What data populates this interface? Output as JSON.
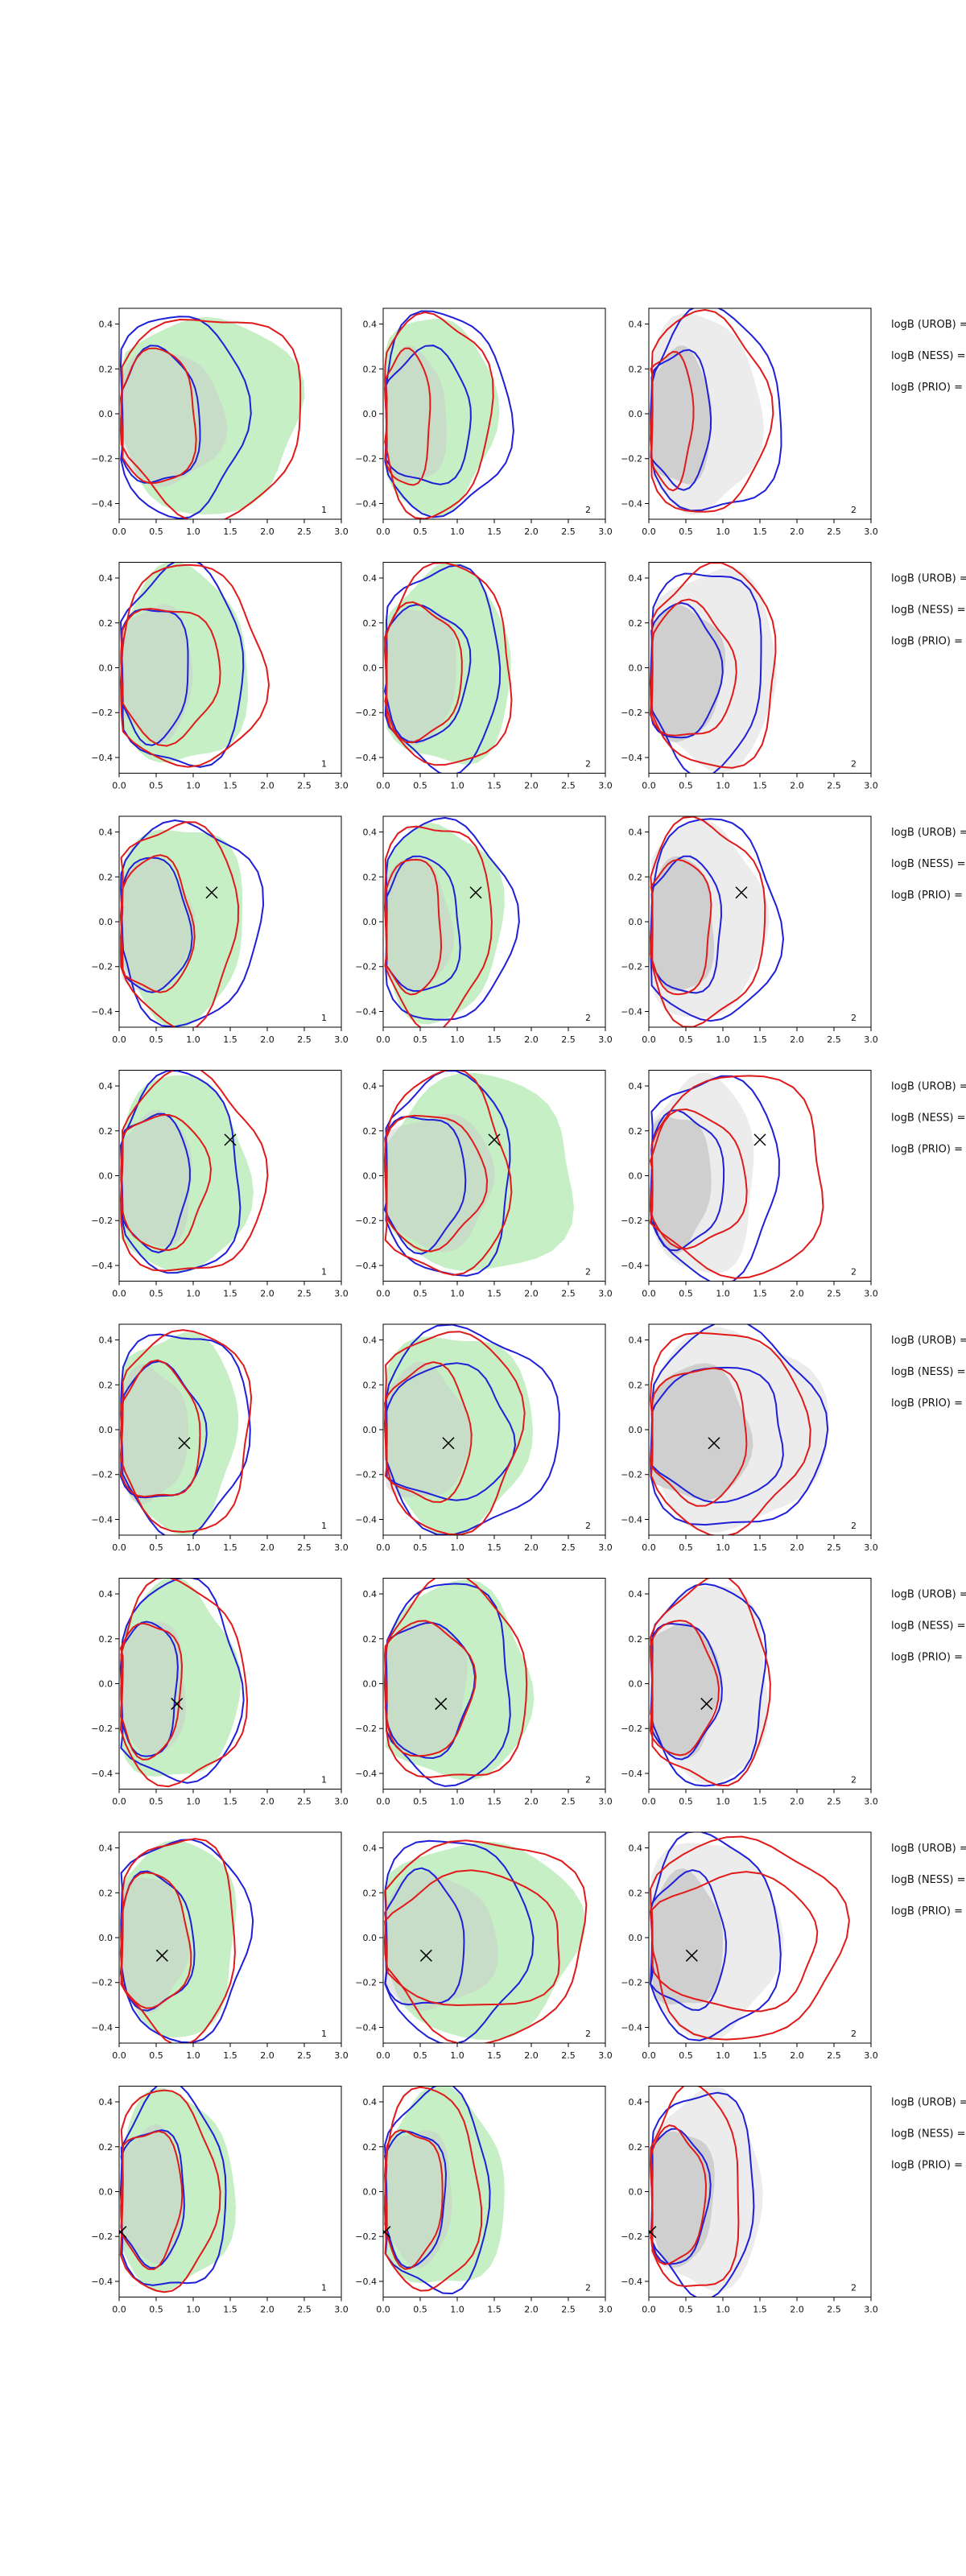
{
  "figure": {
    "side_labels": [
      "logB (UROB) =",
      "logB (NESS) =",
      "logB (PRIO) ="
    ],
    "x_ticks": [
      "0.0",
      "0.5",
      "1.0",
      "1.5",
      "2.0",
      "2.5",
      "3.0"
    ],
    "y_ticks": [
      "0.4",
      "0.2",
      "0.0",
      "−0.2",
      "−0.4"
    ],
    "colors": {
      "fill_green": "#c6efc6",
      "fill_gray": "#ececec",
      "inner_gray": "#c8c8c8",
      "contour_blue": "#1f1fd8",
      "contour_red": "#e01a1a",
      "marker": "#000000"
    }
  },
  "chart_data": [
    {
      "type": "contour",
      "row": 1,
      "marker": null,
      "panels": [
        {
          "corner_label": "1",
          "fill": "green",
          "fill_r": 2.45,
          "blue": [
            1.7,
            1.1
          ],
          "red": [
            2.5,
            1.05
          ]
        },
        {
          "corner_label": "2",
          "fill": "green",
          "fill_r": 1.5,
          "blue": [
            1.7,
            1.2
          ],
          "red": [
            1.45,
            0.65
          ]
        },
        {
          "corner_label": "2",
          "fill": "gray",
          "fill_r": 1.5,
          "blue": [
            1.8,
            0.85
          ],
          "red": [
            1.6,
            0.6
          ]
        }
      ]
    },
    {
      "type": "contour",
      "row": 2,
      "marker": null,
      "panels": [
        {
          "corner_label": "1",
          "fill": "green",
          "fill_r": 1.75,
          "blue": [
            1.7,
            0.95
          ],
          "red": [
            1.95,
            1.35
          ]
        },
        {
          "corner_label": "2",
          "fill": "green",
          "fill_r": 1.75,
          "blue": [
            1.6,
            1.15
          ],
          "red": [
            1.75,
            1.05
          ]
        },
        {
          "corner_label": "2",
          "fill": "gray",
          "fill_r": 1.75,
          "blue": [
            1.55,
            0.95
          ],
          "red": [
            1.75,
            1.15
          ]
        }
      ]
    },
    {
      "type": "contour",
      "row": 3,
      "marker": [
        1.25,
        0.13
      ],
      "panels": [
        {
          "corner_label": "1",
          "fill": "green",
          "fill_r": 1.7,
          "blue": [
            1.9,
            0.95
          ],
          "red": [
            1.6,
            1.0
          ]
        },
        {
          "corner_label": "2",
          "fill": "green",
          "fill_r": 1.6,
          "blue": [
            1.75,
            1.05
          ],
          "red": [
            1.45,
            0.8
          ]
        },
        {
          "corner_label": "2",
          "fill": "gray",
          "fill_r": 1.55,
          "blue": [
            1.75,
            1.0
          ],
          "red": [
            1.55,
            0.85
          ]
        }
      ]
    },
    {
      "type": "contour",
      "row": 4,
      "marker": [
        1.5,
        0.16
      ],
      "panels": [
        {
          "corner_label": "1",
          "fill": "green",
          "fill_r": 1.75,
          "blue": [
            1.65,
            0.95
          ],
          "red": [
            1.95,
            1.2
          ]
        },
        {
          "corner_label": "2",
          "fill": "green",
          "fill_r": 2.6,
          "blue": [
            1.75,
            1.1
          ],
          "red": [
            1.7,
            1.35
          ]
        },
        {
          "corner_label": "2",
          "fill": "gray",
          "fill_r": 1.45,
          "blue": [
            1.75,
            1.0
          ],
          "red": [
            2.4,
            1.3
          ]
        }
      ]
    },
    {
      "type": "contour",
      "row": 5,
      "marker": [
        0.88,
        -0.06
      ],
      "panels": [
        {
          "corner_label": "1",
          "fill": "green",
          "fill_r": 1.6,
          "blue": [
            1.75,
            1.15
          ],
          "red": [
            1.8,
            1.1
          ]
        },
        {
          "corner_label": "2",
          "fill": "green",
          "fill_r": 2.0,
          "blue": [
            2.35,
            1.75
          ],
          "red": [
            1.85,
            1.2
          ]
        },
        {
          "corner_label": "2",
          "fill": "gray",
          "fill_r": 2.4,
          "blue": [
            2.35,
            1.85
          ],
          "red": [
            2.1,
            1.35
          ]
        }
      ]
    },
    {
      "type": "contour",
      "row": 6,
      "marker": [
        0.78,
        -0.09
      ],
      "panels": [
        {
          "corner_label": "1",
          "fill": "green",
          "fill_r": 1.6,
          "blue": [
            1.65,
            0.8
          ],
          "red": [
            1.7,
            0.85
          ]
        },
        {
          "corner_label": "2",
          "fill": "green",
          "fill_r": 2.0,
          "blue": [
            1.75,
            1.2
          ],
          "red": [
            1.95,
            1.2
          ]
        },
        {
          "corner_label": "2",
          "fill": "gray",
          "fill_r": 1.65,
          "blue": [
            1.6,
            0.95
          ],
          "red": [
            1.65,
            0.9
          ]
        }
      ]
    },
    {
      "type": "contour",
      "row": 7,
      "marker": [
        0.58,
        -0.08
      ],
      "panels": [
        {
          "corner_label": "1",
          "fill": "green",
          "fill_r": 1.6,
          "blue": [
            1.75,
            1.0
          ],
          "red": [
            1.6,
            0.95
          ]
        },
        {
          "corner_label": "2",
          "fill": "green",
          "fill_r": 2.65,
          "blue": [
            1.95,
            1.1
          ],
          "red": [
            2.75,
            2.45
          ]
        },
        {
          "corner_label": "2",
          "fill": "gray",
          "fill_r": 1.75,
          "blue": [
            1.75,
            1.05
          ],
          "red": [
            2.6,
            2.3
          ]
        }
      ]
    },
    {
      "type": "contour",
      "row": 8,
      "marker": [
        0.02,
        -0.18
      ],
      "panels": [
        {
          "corner_label": "1",
          "fill": "green",
          "fill_r": 1.55,
          "blue": [
            1.45,
            0.9
          ],
          "red": [
            1.3,
            0.85
          ]
        },
        {
          "corner_label": "2",
          "fill": "green",
          "fill_r": 1.65,
          "blue": [
            1.45,
            0.85
          ],
          "red": [
            1.3,
            0.8
          ]
        },
        {
          "corner_label": "2",
          "fill": "gray",
          "fill_r": 1.55,
          "blue": [
            1.45,
            0.8
          ],
          "red": [
            1.25,
            0.75
          ]
        }
      ]
    }
  ]
}
